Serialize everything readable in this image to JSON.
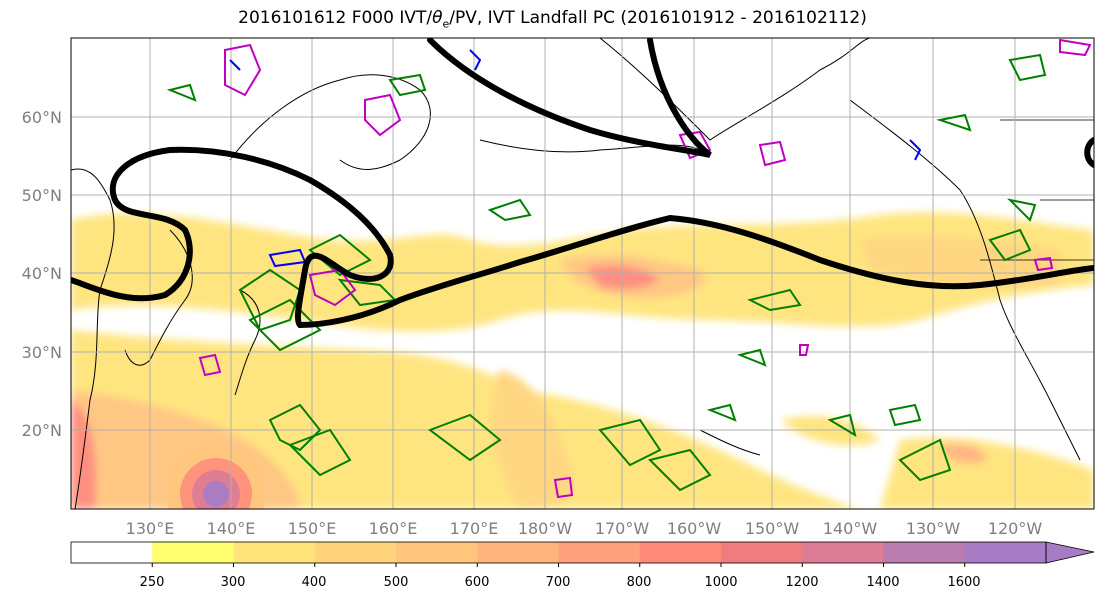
{
  "title_main": "2016101612 F000 IVT/",
  "title_theta": "θ",
  "title_sub": "e",
  "title_rest": "/PV, IVT Landfall PC (2016101912 - 2016102112)",
  "lon_ticks": [
    "130°E",
    "140°E",
    "150°E",
    "160°E",
    "170°E",
    "180°W",
    "170°W",
    "160°W",
    "150°W",
    "140°W",
    "130°W",
    "120°W"
  ],
  "lat_ticks": [
    "60°N",
    "50°N",
    "40°N",
    "30°N",
    "20°N"
  ],
  "colorbar": {
    "levels": [
      "250",
      "300",
      "400",
      "500",
      "600",
      "700",
      "800",
      "1000",
      "1200",
      "1400",
      "1600"
    ],
    "colors": [
      "#ffffff",
      "#ffff70",
      "#ffe47a",
      "#ffd47c",
      "#ffc57d",
      "#ffb47e",
      "#ffa07c",
      "#ff8a7a",
      "#f07c80",
      "#dc7c96",
      "#b87cae",
      "#a87cc4"
    ]
  },
  "colors": {
    "theta_e_contour": "#008000",
    "pv_positive": "#c000c0",
    "pv_negative": "#0000ff",
    "landfall_pc": "#000000",
    "coast": "#000000",
    "grid": "#b0b0b0"
  }
}
